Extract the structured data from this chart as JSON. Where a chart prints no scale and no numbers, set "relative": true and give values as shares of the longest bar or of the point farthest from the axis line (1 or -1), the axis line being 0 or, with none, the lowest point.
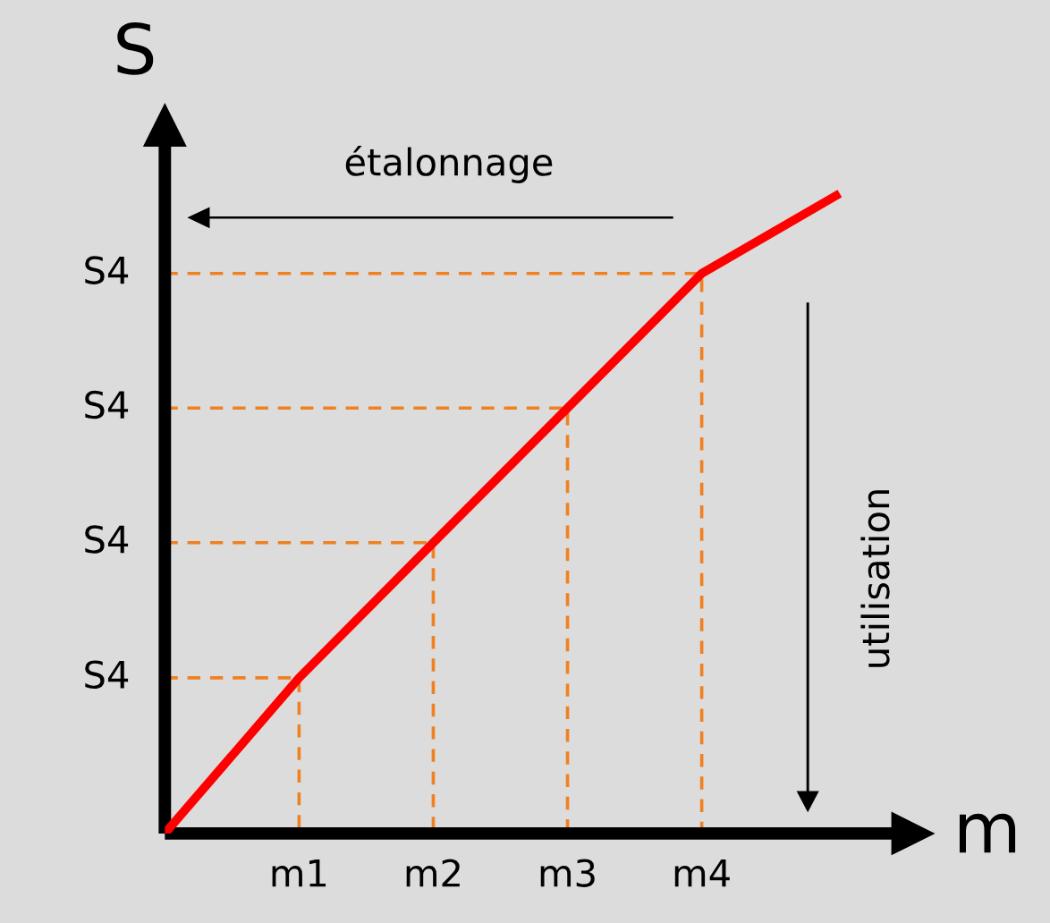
{
  "chart_data": {
    "type": "line",
    "xlabel": "m",
    "ylabel": "S",
    "relative": true,
    "categories": [
      null,
      "m1",
      "m2",
      "m3",
      "m4",
      null
    ],
    "series": [
      {
        "color": "#ff0000",
        "values": [
          0,
          0.244,
          0.456,
          0.667,
          0.878,
          1
        ]
      }
    ],
    "annotations": [
      "étalonnage",
      "utilisation",
      "S4",
      "S4",
      "S4",
      "S4"
    ]
  }
}
